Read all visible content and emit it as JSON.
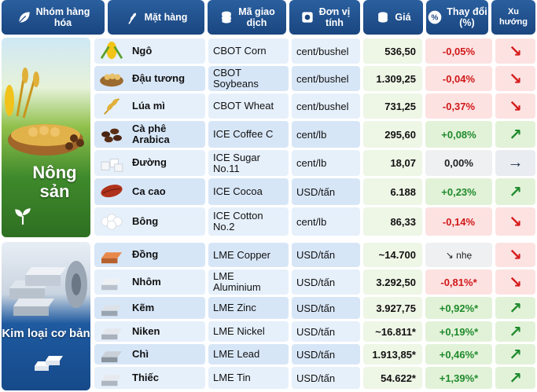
{
  "header": {
    "group": "Nhóm hàng\nhóa",
    "item": "Mặt hàng",
    "code": "Mã giao\ndịch",
    "unit": "Đơn vị\ntính",
    "price": "Giá",
    "change": "Thay đổi\n(%)",
    "trend": "Xu\nhướng"
  },
  "groups": {
    "agri": "Nông\nsản",
    "metal": "Kim loại cơ bản"
  },
  "rows": [
    {
      "name": "Ngô",
      "code": "CBOT Corn",
      "unit": "cent/bushel",
      "price": "536,50",
      "change": "-0,05%",
      "trend": "down",
      "thumb": "corn-icon"
    },
    {
      "name": "Đậu tương",
      "code": "CBOT\nSoybeans",
      "unit": "cent/bushel",
      "price": "1.309,25",
      "change": "-0,04%",
      "trend": "down",
      "thumb": "soybean-icon"
    },
    {
      "name": "Lúa mì",
      "code": "CBOT Wheat",
      "unit": "cent/bushel",
      "price": "731,25",
      "change": "-0,37%",
      "trend": "down",
      "thumb": "wheat-icon"
    },
    {
      "name": "Cà phê\nArabica",
      "code": "ICE Coffee C",
      "unit": "cent/lb",
      "price": "295,60",
      "change": "+0,08%",
      "trend": "up",
      "thumb": "coffee-icon"
    },
    {
      "name": "Đường",
      "code": "ICE Sugar\nNo.11",
      "unit": "cent/lb",
      "price": "18,07",
      "change": "0,00%",
      "trend": "flat",
      "thumb": "sugar-icon"
    },
    {
      "name": "Ca cao",
      "code": "ICE Cocoa",
      "unit": "USD/tấn",
      "price": "6.188",
      "change": "+0,23%",
      "trend": "up",
      "thumb": "cocoa-icon"
    },
    {
      "name": "Bông",
      "code": "ICE Cotton\nNo.2",
      "unit": "cent/lb",
      "price": "86,33",
      "change": "-0,14%",
      "trend": "down",
      "thumb": "cotton-icon"
    },
    {
      "name": "Đồng",
      "code": "LME Copper",
      "unit": "USD/tấn",
      "price": "~14.700",
      "change": "↘ nhẹ",
      "trend": "down",
      "thumb": "copper-icon"
    },
    {
      "name": "Nhôm",
      "code": "LME\nAluminium",
      "unit": "USD/tấn",
      "price": "3.292,50",
      "change": "-0,81%*",
      "trend": "down",
      "thumb": "aluminium-icon"
    },
    {
      "name": "Kẽm",
      "code": "LME Zinc",
      "unit": "USD/tấn",
      "price": "3.927,75",
      "change": "+0,92%*",
      "trend": "up",
      "thumb": "zinc-icon"
    },
    {
      "name": "Niken",
      "code": "LME Nickel",
      "unit": "USD/tấn",
      "price": "~16.811*",
      "change": "+0,19%*",
      "trend": "up",
      "thumb": "nickel-icon"
    },
    {
      "name": "Chì",
      "code": "LME Lead",
      "unit": "USD/tấn",
      "price": "1.913,85*",
      "change": "+0,46%*",
      "trend": "up",
      "thumb": "lead-icon"
    },
    {
      "name": "Thiếc",
      "code": "LME Tin",
      "unit": "USD/tấn",
      "price": "54.622*",
      "change": "+1,39%*",
      "trend": "up",
      "thumb": "tin-icon"
    }
  ],
  "arrows": {
    "up": "↗",
    "down": "↘",
    "flat": "→"
  },
  "colors": {
    "header": "#1a4680",
    "negative": "#d01818",
    "positive": "#1f8a2c"
  }
}
